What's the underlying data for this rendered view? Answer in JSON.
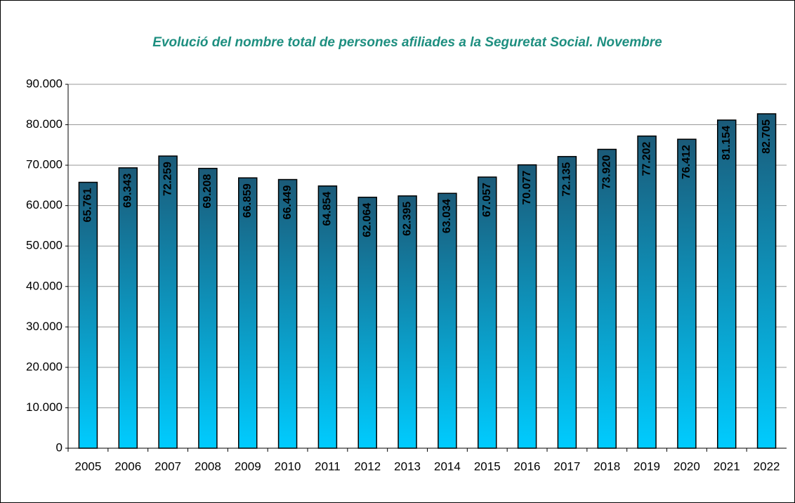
{
  "chart_data": {
    "type": "bar",
    "title": "Evolució del nombre total de persones afiliades a la Seguretat Social. Novembre",
    "categories": [
      "2005",
      "2006",
      "2007",
      "2008",
      "2009",
      "2010",
      "2011",
      "2012",
      "2013",
      "2014",
      "2015",
      "2016",
      "2017",
      "2018",
      "2019",
      "2020",
      "2021",
      "2022"
    ],
    "values": [
      65761,
      69343,
      72259,
      69208,
      66859,
      66449,
      64854,
      62064,
      62395,
      63034,
      67057,
      70077,
      72135,
      73920,
      77202,
      76412,
      81154,
      82705
    ],
    "value_labels": [
      "65.761",
      "69.343",
      "72.259",
      "69.208",
      "66.859",
      "66.449",
      "64.854",
      "62.064",
      "62.395",
      "63.034",
      "67.057",
      "70.077",
      "72.135",
      "73.920",
      "77.202",
      "76.412",
      "81.154",
      "82.705"
    ],
    "color": [
      "#1b5a78",
      "#00ccff"
    ],
    "ylim": [
      0,
      90000
    ],
    "yticks": [
      0,
      {
        "value": 10000,
        "label": "10.000"
      },
      {
        "value": 20000,
        "label": "20.000"
      },
      {
        "value": 30000,
        "label": "30.000"
      },
      {
        "value": 40000,
        "label": "40.000"
      },
      {
        "value": 50000,
        "label": "50.000"
      },
      {
        "value": 60000,
        "label": "60.000"
      },
      {
        "value": 70000,
        "label": "70.000"
      },
      {
        "value": 80000,
        "label": "80.000"
      },
      {
        "value": 90000,
        "label": "90.000"
      }
    ],
    "grid": true
  }
}
